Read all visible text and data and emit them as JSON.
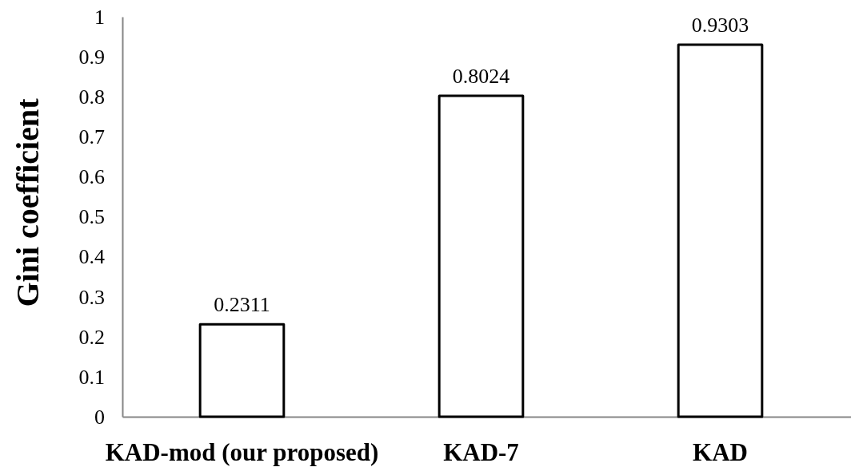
{
  "chart_data": {
    "type": "bar",
    "ylabel": "Gini coefficient",
    "categories": [
      "KAD-mod (our proposed)",
      "KAD-7",
      "KAD"
    ],
    "values": [
      0.2311,
      0.8024,
      0.9303
    ],
    "color": "#ffffff",
    "ylim": [
      0,
      1
    ],
    "yticks": [
      0,
      0.1,
      0.2,
      0.3,
      0.4,
      0.5,
      0.6,
      0.7,
      0.8,
      0.9,
      1
    ],
    "data_labels": true
  }
}
